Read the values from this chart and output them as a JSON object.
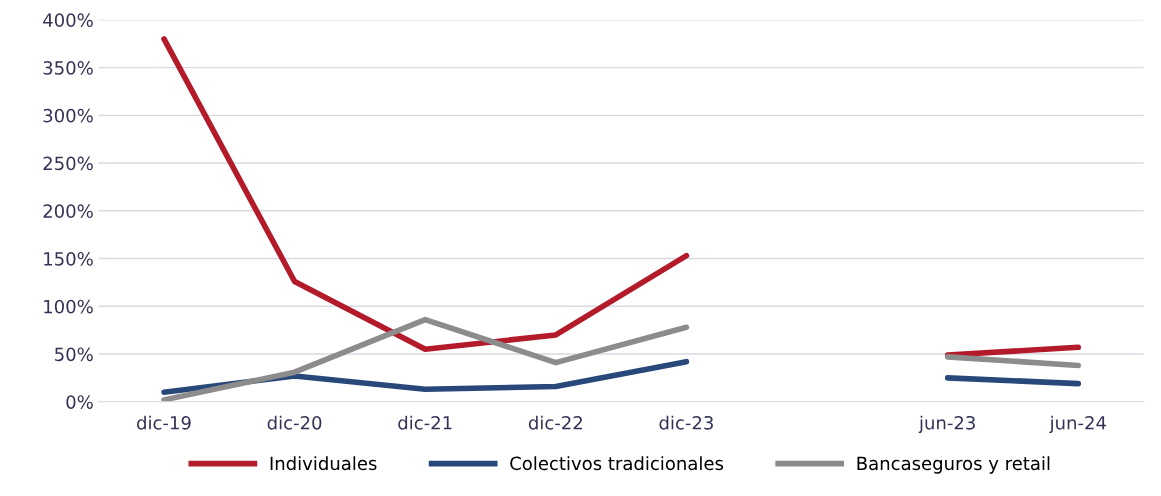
{
  "chart_data": {
    "type": "line",
    "categories": [
      "dic-19",
      "dic-20",
      "dic-21",
      "dic-22",
      "dic-23",
      null,
      "jun-23",
      "jun-24"
    ],
    "series": [
      {
        "name": "Individuales",
        "color": "#b31b2b",
        "values": [
          380,
          126,
          55,
          70,
          153,
          null,
          49,
          57
        ]
      },
      {
        "name": "Colectivos tradicionales",
        "color": "#29487a",
        "values": [
          10,
          27,
          13,
          16,
          42,
          null,
          25,
          19
        ]
      },
      {
        "name": "Bancaseguros y retail",
        "color": "#8c8c8c",
        "values": [
          2,
          31,
          86,
          41,
          78,
          null,
          47,
          38
        ]
      }
    ],
    "ylim": [
      0,
      400
    ],
    "yticks": [
      {
        "value": 0,
        "label": "0%"
      },
      {
        "value": 50,
        "label": "50%"
      },
      {
        "value": 100,
        "label": "100%"
      },
      {
        "value": 150,
        "label": "150%"
      },
      {
        "value": 200,
        "label": "200%"
      },
      {
        "value": 250,
        "label": "250%"
      },
      {
        "value": 300,
        "label": "300%"
      },
      {
        "value": 350,
        "label": "350%"
      },
      {
        "value": 400,
        "label": "400%"
      }
    ],
    "grid": "y",
    "legend": "bottom",
    "marker": "none",
    "line_style": "solid"
  }
}
